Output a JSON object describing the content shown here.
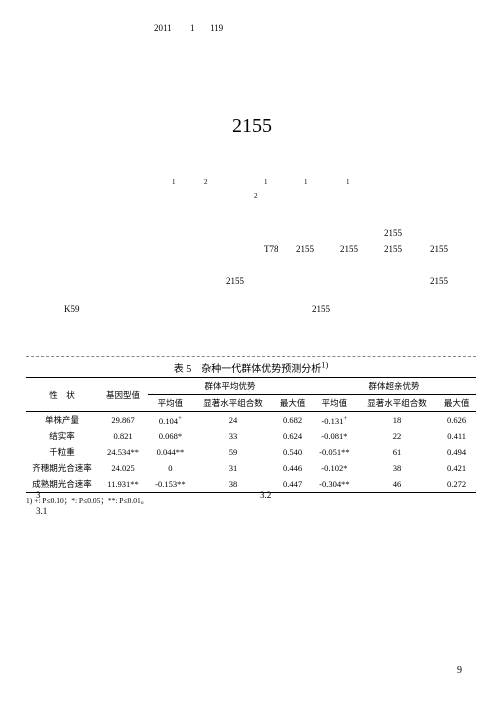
{
  "header": {
    "year": "2011",
    "vol": "1",
    "page": "119"
  },
  "big_number": "2155",
  "sup_marks": {
    "a": "1",
    "b": "2",
    "c": "1",
    "d": "1",
    "e": "1",
    "f": "2"
  },
  "body_text": {
    "t78": "T78",
    "n1": "2155",
    "n2": "2155",
    "n3": "2155",
    "n4": "2155",
    "n5": "2155",
    "n6": "2155",
    "n7": "2155",
    "k59": "K59",
    "n8": "2155"
  },
  "table": {
    "caption": "表 5　杂种一代群体优势预测分析",
    "caption_sup": "1)",
    "head": {
      "trait": "性　状",
      "genotype": "基因型值",
      "group_avg": "群体平均优势",
      "group_het": "群体超亲优势",
      "mean": "平均值",
      "sig": "显著水平组合数",
      "max": "最大值"
    },
    "rows": [
      {
        "trait": "单株产量",
        "gene": "29.867",
        "a_mean": "0.104",
        "a_mean_sup": "+",
        "a_sig": "24",
        "a_max": "0.682",
        "b_mean": "-0.131",
        "b_mean_sup": "+",
        "b_sig": "18",
        "b_max": "0.626"
      },
      {
        "trait": "结实率",
        "gene": "0.821",
        "a_mean": "0.068*",
        "a_mean_sup": "",
        "a_sig": "33",
        "a_max": "0.624",
        "b_mean": "-0.081*",
        "b_mean_sup": "",
        "b_sig": "22",
        "b_max": "0.411"
      },
      {
        "trait": "千粒重",
        "gene": "24.534**",
        "a_mean": "0.044**",
        "a_mean_sup": "",
        "a_sig": "59",
        "a_max": "0.540",
        "b_mean": "-0.051**",
        "b_mean_sup": "",
        "b_sig": "61",
        "b_max": "0.494"
      },
      {
        "trait": "齐穗期光合速率",
        "gene": "24.025",
        "a_mean": "0",
        "a_mean_sup": "",
        "a_sig": "31",
        "a_max": "0.446",
        "b_mean": "-0.102*",
        "b_mean_sup": "",
        "b_sig": "38",
        "b_max": "0.421"
      },
      {
        "trait": "成熟期光合速率",
        "gene": "11.931**",
        "a_mean": "-0.153**",
        "a_mean_sup": "",
        "a_sig": "38",
        "a_max": "0.447",
        "b_mean": "-0.304**",
        "b_mean_sup": "",
        "b_sig": "46",
        "b_max": "0.272"
      }
    ],
    "footnote": "1) +: P≤0.10；*: P≤0.05；**: P≤0.01。"
  },
  "sections": {
    "s3": "3",
    "s31": "3.1",
    "s32": "3.2"
  },
  "page_number": "9",
  "colors": {
    "text": "#000000",
    "bg": "#ffffff",
    "dash": "#888888"
  }
}
